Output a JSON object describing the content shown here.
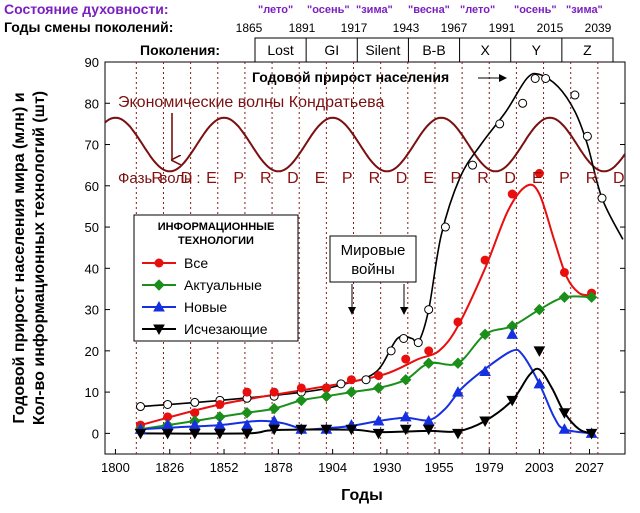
{
  "colors": {
    "purple": "#7b20c0",
    "kondratiev": "#7a1010",
    "phase": "#8a1010",
    "red": "#e8100f",
    "green": "#1a8f1a",
    "blue": "#1530e0",
    "black": "#000000",
    "grid_dotted": "#8b1a1a"
  },
  "header": {
    "spirit_label": "Состояние духовности:",
    "seasons": [
      "\"лето\"",
      "\"осень\"",
      "\"зима\"",
      "\"весна\"",
      "\"лето\"",
      "\"осень\"",
      "\"зима\""
    ],
    "gen_change_label": "Годы смены поколений:",
    "gen_years": [
      "1865",
      "1891",
      "1917",
      "1943",
      "1967",
      "1991",
      "2015",
      "2039"
    ],
    "generations_label": "Поколения:",
    "generations": [
      "Lost",
      "GI",
      "Silent",
      "B-B",
      "X",
      "Y",
      "Z"
    ]
  },
  "chart_data": {
    "type": "line",
    "xlabel": "Годы",
    "ylabel_line1": "Годовой прирост населения мира (млн) и",
    "ylabel_line2": "Кол-во информационных технологий (шт)",
    "xlim": [
      1795,
      2044
    ],
    "ylim": [
      -5,
      90
    ],
    "x_ticks": [
      1800,
      1826,
      1852,
      1878,
      1904,
      1930,
      1955,
      1979,
      2003,
      2027
    ],
    "y_ticks": [
      0,
      10,
      20,
      30,
      40,
      50,
      60,
      70,
      80,
      90
    ],
    "phase_lines_x": [
      1810,
      1823,
      1836,
      1849,
      1862,
      1875,
      1888,
      1901,
      1914,
      1927,
      1940,
      1953,
      1966,
      1979,
      1992,
      2005,
      2018,
      2031
    ],
    "population_growth": {
      "name": "Годовой прирост населения",
      "points": [
        [
          1812,
          6.5
        ],
        [
          1825,
          7
        ],
        [
          1838,
          7.5
        ],
        [
          1850,
          8
        ],
        [
          1863,
          8.5
        ],
        [
          1876,
          9
        ],
        [
          1889,
          10
        ],
        [
          1901,
          11
        ],
        [
          1908,
          12
        ],
        [
          1920,
          13
        ],
        [
          1932,
          20
        ],
        [
          1938,
          23
        ],
        [
          1945,
          22
        ],
        [
          1950,
          30
        ],
        [
          1958,
          50
        ],
        [
          1971,
          65
        ],
        [
          1984,
          75
        ],
        [
          1995,
          80
        ],
        [
          2001,
          86
        ],
        [
          2006,
          86
        ],
        [
          2020,
          82
        ],
        [
          2026,
          72
        ],
        [
          2033,
          57
        ]
      ],
      "curve": [
        [
          1812,
          6.5
        ],
        [
          1850,
          8
        ],
        [
          1890,
          10
        ],
        [
          1910,
          12
        ],
        [
          1925,
          15
        ],
        [
          1935,
          23
        ],
        [
          1942,
          23
        ],
        [
          1945,
          22
        ],
        [
          1950,
          30
        ],
        [
          1956,
          48
        ],
        [
          1965,
          62
        ],
        [
          1975,
          70
        ],
        [
          1987,
          78
        ],
        [
          1997,
          86
        ],
        [
          2003,
          87
        ],
        [
          2012,
          84
        ],
        [
          2020,
          78
        ],
        [
          2026,
          70
        ],
        [
          2033,
          57
        ],
        [
          2043,
          47
        ]
      ]
    },
    "kondratiev": {
      "name": "Экономические волны Кондратьева",
      "mean": 70,
      "amplitude": 6.5,
      "period": 52,
      "peak_x": 1800
    },
    "phases_label": "Фазы волн :",
    "phases": [
      [
        "R",
        1820
      ],
      [
        "D",
        1834
      ],
      [
        "E",
        1846
      ],
      [
        "P",
        1859
      ],
      [
        "R",
        1872
      ],
      [
        "D",
        1885
      ],
      [
        "E",
        1898
      ],
      [
        "P",
        1911
      ],
      [
        "R",
        1924
      ],
      [
        "D",
        1937
      ],
      [
        "E",
        1950
      ],
      [
        "P",
        1963
      ],
      [
        "R",
        1976
      ],
      [
        "D",
        1989
      ],
      [
        "E",
        2002
      ],
      [
        "P",
        2015
      ],
      [
        "R",
        2028
      ],
      [
        "D",
        2041
      ]
    ],
    "legend_title_line1": "ИНФОРМАЦИОННЫЕ",
    "legend_title_line2": "ТЕХНОЛОГИИ",
    "series": [
      {
        "name": "Все",
        "marker": "circle",
        "color": "#e8100f",
        "points": [
          [
            1812,
            2
          ],
          [
            1825,
            4
          ],
          [
            1838,
            5
          ],
          [
            1850,
            7
          ],
          [
            1863,
            10
          ],
          [
            1876,
            10
          ],
          [
            1889,
            11
          ],
          [
            1901,
            11
          ],
          [
            1913,
            13
          ],
          [
            1926,
            14
          ],
          [
            1939,
            18
          ],
          [
            1950,
            20
          ],
          [
            1964,
            27
          ],
          [
            1977,
            42
          ],
          [
            1990,
            58
          ],
          [
            2003,
            63
          ],
          [
            2015,
            39
          ],
          [
            2028,
            34
          ]
        ],
        "curve": [
          [
            1812,
            2
          ],
          [
            1850,
            7
          ],
          [
            1890,
            10.5
          ],
          [
            1913,
            12.5
          ],
          [
            1930,
            14.5
          ],
          [
            1945,
            18
          ],
          [
            1955,
            20
          ],
          [
            1964,
            26
          ],
          [
            1977,
            40
          ],
          [
            1988,
            54
          ],
          [
            1997,
            60
          ],
          [
            2003,
            58
          ],
          [
            2010,
            47
          ],
          [
            2016,
            38
          ],
          [
            2022,
            34
          ],
          [
            2028,
            33.5
          ]
        ]
      },
      {
        "name": "Актуальные",
        "marker": "diamond",
        "color": "#1a8f1a",
        "points": [
          [
            1812,
            1
          ],
          [
            1825,
            2
          ],
          [
            1838,
            3
          ],
          [
            1850,
            4
          ],
          [
            1863,
            5
          ],
          [
            1876,
            6
          ],
          [
            1889,
            8
          ],
          [
            1901,
            9
          ],
          [
            1913,
            10
          ],
          [
            1926,
            11
          ],
          [
            1939,
            13
          ],
          [
            1950,
            17
          ],
          [
            1964,
            17
          ],
          [
            1977,
            24
          ],
          [
            1990,
            26
          ],
          [
            2003,
            30
          ],
          [
            2015,
            33
          ],
          [
            2028,
            33
          ]
        ]
      },
      {
        "name": "Новые",
        "marker": "triangle-up",
        "color": "#1530e0",
        "points": [
          [
            1812,
            1
          ],
          [
            1825,
            2
          ],
          [
            1838,
            2
          ],
          [
            1850,
            2
          ],
          [
            1863,
            2
          ],
          [
            1876,
            3
          ],
          [
            1889,
            1
          ],
          [
            1901,
            1
          ],
          [
            1913,
            2
          ],
          [
            1926,
            3
          ],
          [
            1939,
            4
          ],
          [
            1950,
            3
          ],
          [
            1964,
            10
          ],
          [
            1977,
            15
          ],
          [
            1990,
            24
          ],
          [
            2003,
            12
          ],
          [
            2015,
            1
          ],
          [
            2028,
            0
          ]
        ],
        "curve": [
          [
            1812,
            1
          ],
          [
            1830,
            1.5
          ],
          [
            1850,
            2
          ],
          [
            1868,
            3
          ],
          [
            1880,
            2.5
          ],
          [
            1890,
            1
          ],
          [
            1900,
            1.2
          ],
          [
            1913,
            1.8
          ],
          [
            1926,
            3
          ],
          [
            1939,
            3.8
          ],
          [
            1950,
            3.2
          ],
          [
            1958,
            6
          ],
          [
            1966,
            11
          ],
          [
            1978,
            16
          ],
          [
            1990,
            20
          ],
          [
            1995,
            19
          ],
          [
            2003,
            12
          ],
          [
            2010,
            4
          ],
          [
            2015,
            1
          ],
          [
            2028,
            0
          ]
        ]
      },
      {
        "name": "Исчезающие",
        "marker": "triangle-down",
        "color": "#000000",
        "points": [
          [
            1812,
            0
          ],
          [
            1825,
            0
          ],
          [
            1838,
            0
          ],
          [
            1850,
            0
          ],
          [
            1863,
            0
          ],
          [
            1876,
            1
          ],
          [
            1889,
            1
          ],
          [
            1901,
            1
          ],
          [
            1913,
            1
          ],
          [
            1926,
            0
          ],
          [
            1939,
            1
          ],
          [
            1950,
            1
          ],
          [
            1964,
            0
          ],
          [
            1977,
            3
          ],
          [
            1990,
            8
          ],
          [
            2003,
            20
          ],
          [
            2015,
            5
          ],
          [
            2028,
            0
          ]
        ],
        "curve": [
          [
            1812,
            0
          ],
          [
            1863,
            0
          ],
          [
            1876,
            0.8
          ],
          [
            1913,
            0.9
          ],
          [
            1926,
            0.3
          ],
          [
            1950,
            0.6
          ],
          [
            1964,
            0.5
          ],
          [
            1977,
            3
          ],
          [
            1990,
            8
          ],
          [
            1998,
            14
          ],
          [
            2003,
            15.5
          ],
          [
            2009,
            11
          ],
          [
            2015,
            5
          ],
          [
            2022,
            1
          ],
          [
            2028,
            0
          ]
        ]
      }
    ],
    "world_wars_label_line1": "Мировые",
    "world_wars_label_line2": "войны",
    "world_wars_years": [
      1917,
      1942
    ],
    "annotation_arrow_from_label": "Годовой прирост населения"
  }
}
